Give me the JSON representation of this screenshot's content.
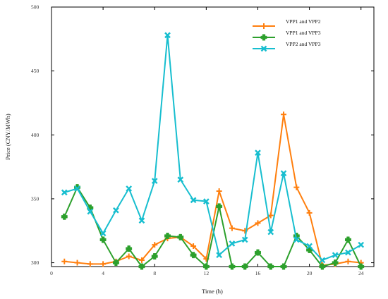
{
  "chart_data": {
    "type": "line",
    "xlabel": "Time (h)",
    "ylabel": "Price (CNY/MWh)",
    "xlim": [
      0,
      25
    ],
    "ylim": [
      297,
      500
    ],
    "xticks": [
      0,
      4,
      8,
      12,
      16,
      20,
      24
    ],
    "yticks": [
      300,
      350,
      400,
      450,
      500
    ],
    "grid": false,
    "legend_position": "top-right",
    "x": [
      1,
      2,
      3,
      4,
      5,
      6,
      7,
      8,
      9,
      10,
      11,
      12,
      13,
      14,
      15,
      16,
      17,
      18,
      19,
      20,
      21,
      22,
      23,
      24
    ],
    "series": [
      {
        "name": "VPP1 and VPP2",
        "color": "#ff7f0e",
        "marker": "plus",
        "values": [
          301,
          300,
          299,
          299,
          301,
          305,
          302,
          314,
          319,
          320,
          313,
          303,
          356,
          327,
          325,
          331,
          337,
          416,
          359,
          339,
          298,
          299,
          301,
          300
        ]
      },
      {
        "name": "VPP1 and VPP3",
        "color": "#2ca02c",
        "marker": "filled-plus",
        "values": [
          336,
          359,
          343,
          318,
          300,
          311,
          297,
          305,
          321,
          320,
          306,
          297,
          344,
          297,
          297,
          308,
          297,
          297,
          321,
          310,
          297,
          300,
          318,
          297
        ]
      },
      {
        "name": "VPP2 and VPP3",
        "color": "#17becf",
        "marker": "x",
        "values": [
          355,
          358,
          340,
          323,
          341,
          358,
          333,
          364,
          478,
          365,
          349,
          348,
          306,
          315,
          318,
          386,
          324,
          370,
          318,
          313,
          302,
          306,
          308,
          314
        ]
      }
    ]
  }
}
